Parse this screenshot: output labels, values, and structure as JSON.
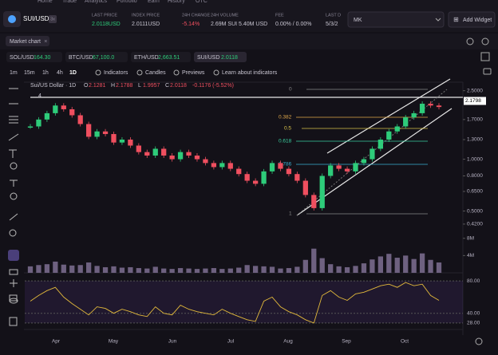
{
  "nav": [
    "Home",
    "Trade",
    "Analytics",
    "Portfolio",
    "Earn",
    "History",
    "OTC"
  ],
  "header": {
    "pair": "SUI/USD",
    "leverage": "3x",
    "stats": [
      {
        "label": "LAST PRICE",
        "value": "2.0118USD"
      },
      {
        "label": "INDEX PRICE",
        "value": "2.0111USD"
      },
      {
        "label": "24H CHANGE",
        "value": "-5.14%"
      },
      {
        "label": "24H VOLUME",
        "value": "2.69M SUI  5.40M USD"
      },
      {
        "label": "FEE",
        "value": "0.00% / 0.00%"
      },
      {
        "label": "LAST D",
        "value": "5/3/2"
      }
    ],
    "market": "MK",
    "add_widget": "Add Widget"
  },
  "tabs": [
    "Market chart"
  ],
  "pairs": [
    {
      "name": "SOL/USD",
      "price": "164.30"
    },
    {
      "name": "BTC/USD",
      "price": "67,100.0"
    },
    {
      "name": "ETH/USD",
      "price": "2,663.51"
    },
    {
      "name": "SUI/USD",
      "price": "2.0118"
    }
  ],
  "toolbar": {
    "timeframes": [
      "1m",
      "15m",
      "1h",
      "4h",
      "1D"
    ],
    "indicators": "Indicators",
    "candles": "Candles",
    "previews": "Previews",
    "learn": "Learn about indicators"
  },
  "chart_data": {
    "type": "candlestick",
    "title": "Sui/US Dollar · 1D",
    "ohlc": [
      {
        "label": "O",
        "value": "2.1281"
      },
      {
        "label": "H",
        "value": "2.1788"
      },
      {
        "label": "L",
        "value": "1.9957"
      },
      {
        "label": "C",
        "value": "2.0118"
      }
    ],
    "change": "-0.1176 (-5.52%)",
    "interval_count": "4",
    "log_scale": true,
    "values": [
      1.55,
      1.7,
      1.85,
      2.05,
      1.95,
      1.8,
      1.6,
      1.35,
      1.45,
      1.4,
      1.25,
      1.3,
      1.2,
      1.1,
      1.05,
      1.15,
      1.05,
      1.0,
      1.1,
      1.05,
      1.0,
      0.95,
      0.9,
      0.95,
      0.88,
      0.82,
      0.75,
      0.72,
      0.85,
      0.95,
      0.88,
      0.82,
      0.75,
      0.62,
      0.52,
      0.8,
      0.92,
      0.88,
      0.85,
      0.95,
      1.0,
      1.15,
      1.3,
      1.45,
      1.55,
      1.75,
      1.85,
      2.1,
      2.05,
      2.01
    ],
    "ylim": [
      0.35,
      2.6
    ],
    "yticks": [
      {
        "value": 2.5,
        "label": "2.5000"
      },
      {
        "value": 1.7,
        "label": "1.7000"
      },
      {
        "value": 1.3,
        "label": "1.3000"
      },
      {
        "value": 1.0,
        "label": "1.0000"
      },
      {
        "value": 0.8,
        "label": "0.8000"
      },
      {
        "value": 0.65,
        "label": "0.6500"
      },
      {
        "value": 0.5,
        "label": "0.5000"
      },
      {
        "value": 0.42,
        "label": "0.4200"
      }
    ],
    "crosshair": 2.1798,
    "fib_labels": [
      0,
      0.382,
      0.5,
      0.618,
      0.786,
      1
    ],
    "months": [
      "Apr",
      "May",
      "Jun",
      "Jul",
      "Aug",
      "Sep",
      "Oct"
    ],
    "up_color": "#2ecc7a",
    "down_color": "#ef4f5f",
    "volume": {
      "values": [
        1.5,
        1.8,
        2.0,
        2.6,
        1.9,
        1.7,
        1.8,
        2.4,
        1.6,
        1.3,
        1.5,
        1.2,
        1.3,
        1.1,
        1.0,
        1.4,
        1.0,
        0.9,
        1.1,
        1.0,
        0.9,
        1.0,
        1.1,
        0.9,
        1.0,
        1.2,
        1.8,
        1.6,
        1.5,
        1.4,
        1.0,
        1.1,
        1.4,
        3.0,
        5.6,
        3.4,
        2.0,
        1.5,
        1.3,
        1.6,
        2.2,
        3.1,
        3.8,
        4.4,
        3.5,
        4.0,
        3.2,
        4.5,
        3.0,
        2.4
      ],
      "color": "#6e6180",
      "ylim": [
        0,
        8.5
      ],
      "yticks": [
        {
          "value": 8,
          "label": "8M"
        },
        {
          "value": 4,
          "label": "4M"
        }
      ]
    },
    "rsi": {
      "values": [
        55,
        62,
        68,
        72,
        60,
        52,
        45,
        38,
        48,
        46,
        40,
        45,
        42,
        38,
        36,
        48,
        40,
        38,
        50,
        45,
        42,
        40,
        38,
        45,
        40,
        36,
        32,
        30,
        55,
        60,
        48,
        42,
        38,
        32,
        28,
        62,
        68,
        60,
        56,
        64,
        66,
        70,
        74,
        76,
        72,
        78,
        74,
        76,
        62,
        56
      ],
      "color": "#e2b93b",
      "ylim": [
        20,
        88
      ],
      "yticks": [
        {
          "value": 80,
          "label": "80.00"
        },
        {
          "value": 40,
          "label": "40.00"
        },
        {
          "value": 28,
          "label": "28.00"
        }
      ]
    }
  }
}
